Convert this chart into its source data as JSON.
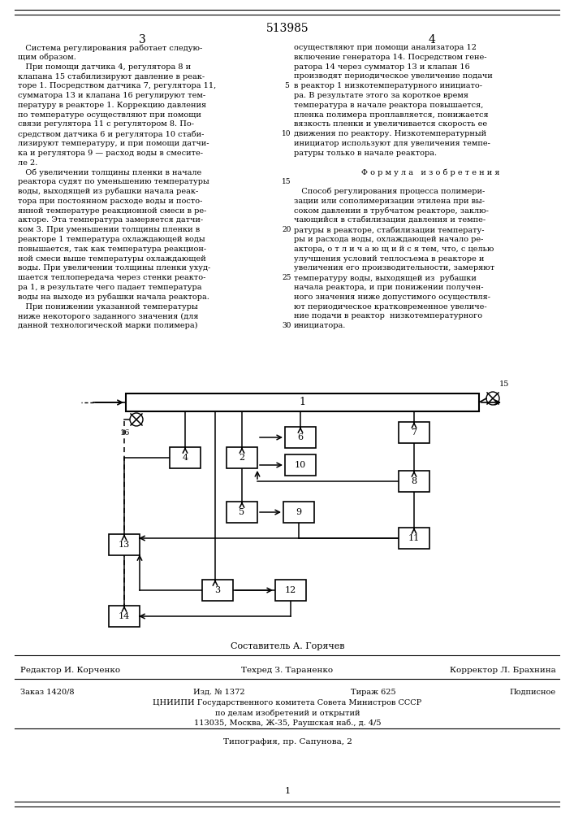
{
  "patent_number": "513985",
  "page_left": "3",
  "page_right": "4",
  "col_left_text": [
    "   Система регулирования работает следую-",
    "щим образом.",
    "   При помощи датчика 4, регулятора 8 и",
    "клапана 15 стабилизируют давление в реак-",
    "торе 1. Посредством датчика 7, регулятора 11,",
    "сумматора 13 и клапана 16 регулируют тем-",
    "пературу в реакторе 1. Коррекцию давления",
    "по температуре осуществляют при помощи",
    "связи регулятора 11 с регулятором 8. По-",
    "средством датчика 6 и регулятора 10 стаби-",
    "лизируют температуру, и при помощи датчи-",
    "ка и регулятора 9 — расход воды в смесите-",
    "ле 2.",
    "   Об увеличении толщины пленки в начале",
    "реактора судят по уменьшению температуры",
    "воды, выходящей из рубашки начала реак-",
    "тора при постоянном расходе воды и посто-",
    "янной температуре реакционной смеси в ре-",
    "акторе. Эта температура замеряется датчи-",
    "ком 3. При уменьшении толщины пленки в",
    "реакторе 1 температура охлаждающей воды",
    "повышается, так как температура реакцион-",
    "ной смеси выше температуры охлаждающей",
    "воды. При увеличении толщины пленки ухуд-",
    "шается теплопередача через стенки реакто-",
    "ра 1, в результате чего падает температура",
    "воды на выходе из рубашки начала реактора.",
    "   При понижении указанной температуры",
    "ниже некоторого заданного значения (для",
    "данной технологической марки полимера)"
  ],
  "col_right_text": [
    "осуществляют при помощи анализатора 12",
    "включение генератора 14. Посредством гене-",
    "ратора 14 через сумматор 13 и клапан 16",
    "производят периодическое увеличение подачи",
    "в реактор 1 низкотемпературного инициато-",
    "ра. В результате этого за короткое время",
    "температура в начале реактора повышается,",
    "пленка полимера проплавляется, понижается",
    "вязкость пленки и увеличивается скорость ее",
    "движения по реактору. Низкотемпературный",
    "инициатор используют для увеличения темпе-",
    "ратуры только в начале реактора.",
    "",
    "   Формула изобретения",
    "",
    "   Способ регулирования процесса полимери-",
    "зации или сополимеризации этилена при вы-",
    "соком давлении в трубчатом реакторе, заклю-",
    "чающийся в стабилизации давления и темпе-",
    "ратуры в реакторе, стабилизации температу-",
    "ры и расхода воды, охлаждающей начало ре-",
    "актора, о т л и ч а ю щ и й с я тем, что, с целью",
    "улучшения условий теплосъема в реакторе и",
    "увеличения его производительности, замеряют",
    "температуру воды, выходящей из  рубашки",
    "начала реактора, и при понижении получен-",
    "ного значения ниже допустимого осуществля-",
    "ют периодическое кратковременное увеличе-",
    "ние подачи в реактор  низкотемпературного",
    "инициатора."
  ],
  "num_map": {
    "4": 5,
    "9": 10,
    "14": 15,
    "19": 20,
    "24": 25,
    "29": 30
  },
  "composer": "Составитель А. Горячев",
  "editor": "Редактор И. Корченко",
  "techred": "Техред З. Тараненко",
  "corrector": "Корректор Л. Брахнина",
  "order": "Заказ 1420/8",
  "izd": "Изд. № 1372",
  "tirazh": "Тираж 625",
  "podpisnoe": "Подписное",
  "org_line1": "ЦНИИПИ Государственного комитета Совета Министров СССР",
  "org_line2": "по делам изобретений и открытий",
  "org_line3": "113035, Москва, Ж-35, Раушская наб., д. 4/5",
  "typography": "Типография, пр. Сапунова, 2",
  "page_num": "1"
}
